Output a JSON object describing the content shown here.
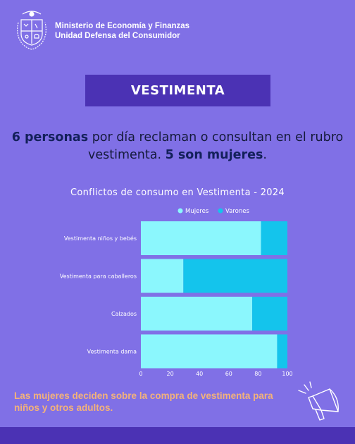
{
  "header": {
    "org_line1": "Ministerio de Economía y Finanzas",
    "org_line2": "Unidad Defensa del Consumidor"
  },
  "title": "VESTIMENTA",
  "headline": {
    "part1_bold": "6 personas",
    "part2": " por día reclaman o consultan en el rubro vestimenta. ",
    "part3_bold": "5 son mujeres",
    "part4": "."
  },
  "chart_data": {
    "type": "bar",
    "orientation": "horizontal",
    "stacked": true,
    "title": "Conflictos de consumo en Vestimenta - 2024",
    "categories": [
      "Vestimenta niños y bebés",
      "Vestimenta para caballeros",
      "Calzados",
      "Vestimenta dama"
    ],
    "series": [
      {
        "name": "Mujeres",
        "values": [
          82,
          29,
          76,
          93
        ],
        "color": "#8BF7FD"
      },
      {
        "name": "Varones",
        "values": [
          18,
          71,
          24,
          7
        ],
        "color": "#14C4EC"
      }
    ],
    "xlim": [
      0,
      100
    ],
    "xticks": [
      0,
      20,
      40,
      60,
      80,
      100
    ],
    "legend": "top-center",
    "grid": false
  },
  "footer": {
    "text": "Las mujeres deciden sobre la compra de vestimenta para niños y otros adultos."
  },
  "icons": {
    "seal": "uruguay-coat-of-arms-icon",
    "megaphone": "megaphone-icon"
  },
  "colors": {
    "background": "#8070E6",
    "accent": "#4B32B4",
    "footer_text": "#F3B27A"
  }
}
